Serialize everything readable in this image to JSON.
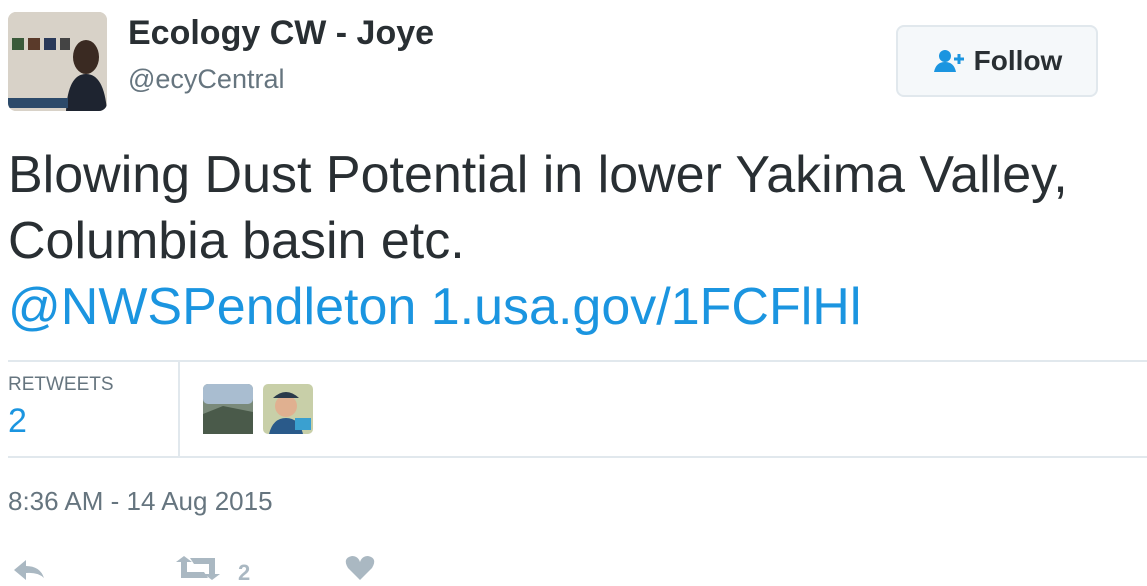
{
  "header": {
    "name": "Ecology CW - Joye",
    "handle": "@ecyCentral",
    "follow": "Follow"
  },
  "tweet": {
    "text": "Blowing Dust Potential in lower Yakima Valley, Columbia basin etc.",
    "mention": "@NWSPendleton",
    "link": "1.usa.gov/1FCFlHl"
  },
  "stats": {
    "retweets_label": "RETWEETS",
    "retweets": "2"
  },
  "timestamp": "8:36 AM - 14 Aug 2015",
  "actions": {
    "retweet_count": "2"
  }
}
